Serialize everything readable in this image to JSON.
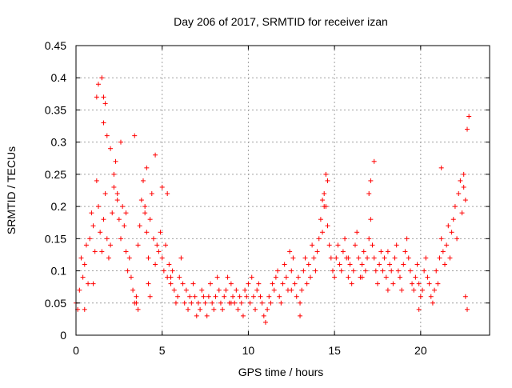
{
  "chart_data": {
    "type": "scatter",
    "title": "Day 206 of 2017, SRMTID for receiver izan",
    "xlabel": "GPS time / hours",
    "ylabel": "SRMTID / TECUs",
    "xlim": [
      0,
      24
    ],
    "ylim": [
      0,
      0.45
    ],
    "x_ticks": [
      0,
      5,
      10,
      15,
      20
    ],
    "x_tick_labels": [
      "0",
      "5",
      "10",
      "15",
      "20"
    ],
    "y_ticks": [
      0,
      0.05,
      0.1,
      0.15,
      0.2,
      0.25,
      0.3,
      0.35,
      0.4,
      0.45
    ],
    "y_tick_labels": [
      "0",
      "0.05",
      "0.1",
      "0.15",
      "0.2",
      "0.25",
      "0.3",
      "0.35",
      "0.4",
      "0.45"
    ],
    "grid": true,
    "marker": "+",
    "color": "#ff0000",
    "series": [
      {
        "name": "SRMTID",
        "x": [
          0.0,
          0.1,
          0.2,
          0.3,
          0.4,
          0.5,
          0.6,
          0.7,
          0.8,
          0.9,
          1.0,
          1.1,
          1.2,
          1.3,
          1.4,
          1.5,
          1.6,
          1.7,
          1.8,
          1.9,
          2.0,
          2.1,
          2.2,
          2.3,
          2.4,
          2.5,
          2.6,
          2.7,
          2.8,
          2.9,
          3.0,
          3.1,
          3.2,
          3.3,
          3.4,
          3.5,
          3.6,
          3.7,
          3.8,
          3.9,
          4.0,
          4.1,
          4.2,
          4.3,
          4.4,
          4.5,
          4.6,
          4.7,
          4.8,
          4.9,
          5.0,
          5.1,
          5.2,
          5.3,
          5.4,
          5.5,
          5.6,
          5.7,
          5.8,
          5.9,
          6.0,
          6.1,
          6.2,
          6.3,
          6.4,
          6.5,
          6.6,
          6.7,
          6.8,
          6.9,
          7.0,
          7.1,
          7.2,
          7.3,
          7.4,
          7.5,
          7.6,
          7.7,
          7.8,
          7.9,
          8.0,
          8.1,
          8.2,
          8.3,
          8.4,
          8.5,
          8.6,
          8.7,
          8.8,
          8.9,
          9.0,
          9.1,
          9.2,
          9.3,
          9.4,
          9.5,
          9.6,
          9.7,
          9.8,
          9.9,
          10.0,
          10.1,
          10.2,
          10.3,
          10.4,
          10.5,
          10.6,
          10.7,
          10.8,
          10.9,
          11.0,
          11.1,
          11.2,
          11.3,
          11.4,
          11.5,
          11.6,
          11.7,
          11.8,
          11.9,
          12.0,
          12.1,
          12.2,
          12.3,
          12.4,
          12.5,
          12.6,
          12.7,
          12.8,
          12.9,
          13.0,
          13.1,
          13.2,
          13.3,
          13.4,
          13.5,
          13.6,
          13.7,
          13.8,
          13.9,
          14.0,
          14.1,
          14.2,
          14.3,
          14.4,
          14.5,
          14.6,
          14.7,
          14.8,
          14.9,
          15.0,
          15.1,
          15.2,
          15.3,
          15.4,
          15.5,
          15.6,
          15.7,
          15.8,
          15.9,
          16.0,
          16.1,
          16.2,
          16.3,
          16.4,
          16.5,
          16.6,
          16.7,
          16.8,
          16.9,
          17.0,
          17.1,
          17.2,
          17.3,
          17.4,
          17.5,
          17.6,
          17.7,
          17.8,
          17.9,
          18.0,
          18.1,
          18.2,
          18.3,
          18.4,
          18.5,
          18.6,
          18.7,
          18.8,
          18.9,
          19.0,
          19.1,
          19.2,
          19.3,
          19.4,
          19.5,
          19.6,
          19.7,
          19.8,
          19.9,
          20.0,
          20.1,
          20.2,
          20.3,
          20.4,
          20.5,
          20.6,
          20.7,
          20.8,
          20.9,
          21.0,
          21.1,
          21.2,
          21.3,
          21.4,
          21.5,
          21.6,
          21.7,
          21.8,
          21.9,
          22.0,
          22.1,
          22.2,
          22.3,
          22.4,
          22.5,
          22.6,
          22.7,
          22.8,
          1.2,
          1.3,
          1.5,
          1.6,
          1.6,
          1.7,
          1.8,
          2.0,
          2.2,
          2.4,
          2.6,
          3.4,
          4.0,
          4.1,
          4.6,
          5.3,
          5.0,
          14.3,
          14.4,
          14.5,
          14.6,
          17.0,
          17.1,
          17.3,
          21.2,
          22.5,
          22.6,
          22.7,
          1.0,
          3.5,
          3.6,
          4.2,
          4.3,
          5.5,
          0.5,
          2.9,
          9.0,
          12.5,
          13.0,
          15.8,
          16.6,
          18.1,
          19.9
        ],
        "y": [
          0.05,
          0.04,
          0.07,
          0.12,
          0.09,
          0.11,
          0.14,
          0.08,
          0.15,
          0.19,
          0.17,
          0.13,
          0.24,
          0.2,
          0.16,
          0.13,
          0.18,
          0.22,
          0.15,
          0.12,
          0.14,
          0.19,
          0.23,
          0.27,
          0.21,
          0.18,
          0.15,
          0.2,
          0.17,
          0.13,
          0.1,
          0.12,
          0.09,
          0.07,
          0.05,
          0.06,
          0.14,
          0.17,
          0.21,
          0.24,
          0.19,
          0.16,
          0.12,
          0.18,
          0.22,
          0.15,
          0.11,
          0.14,
          0.13,
          0.16,
          0.12,
          0.1,
          0.14,
          0.09,
          0.11,
          0.08,
          0.1,
          0.07,
          0.05,
          0.06,
          0.09,
          0.12,
          0.08,
          0.05,
          0.07,
          0.04,
          0.06,
          0.05,
          0.08,
          0.06,
          0.03,
          0.05,
          0.04,
          0.07,
          0.06,
          0.05,
          0.03,
          0.06,
          0.08,
          0.05,
          0.04,
          0.06,
          0.09,
          0.07,
          0.05,
          0.04,
          0.06,
          0.07,
          0.09,
          0.05,
          0.08,
          0.06,
          0.05,
          0.07,
          0.04,
          0.06,
          0.05,
          0.03,
          0.07,
          0.06,
          0.08,
          0.05,
          0.09,
          0.06,
          0.04,
          0.07,
          0.08,
          0.06,
          0.05,
          0.03,
          0.02,
          0.04,
          0.06,
          0.05,
          0.08,
          0.07,
          0.09,
          0.1,
          0.06,
          0.05,
          0.08,
          0.11,
          0.09,
          0.07,
          0.13,
          0.1,
          0.12,
          0.08,
          0.06,
          0.09,
          0.05,
          0.07,
          0.1,
          0.12,
          0.08,
          0.11,
          0.09,
          0.14,
          0.12,
          0.1,
          0.13,
          0.15,
          0.18,
          0.16,
          0.22,
          0.2,
          0.17,
          0.14,
          0.12,
          0.1,
          0.09,
          0.12,
          0.14,
          0.11,
          0.1,
          0.13,
          0.15,
          0.12,
          0.09,
          0.11,
          0.08,
          0.1,
          0.14,
          0.16,
          0.12,
          0.09,
          0.11,
          0.13,
          0.1,
          0.12,
          0.15,
          0.18,
          0.14,
          0.12,
          0.1,
          0.08,
          0.11,
          0.13,
          0.1,
          0.12,
          0.09,
          0.07,
          0.11,
          0.1,
          0.08,
          0.12,
          0.14,
          0.1,
          0.09,
          0.07,
          0.11,
          0.13,
          0.15,
          0.12,
          0.1,
          0.08,
          0.07,
          0.09,
          0.11,
          0.08,
          0.06,
          0.07,
          0.1,
          0.12,
          0.09,
          0.08,
          0.06,
          0.05,
          0.07,
          0.1,
          0.08,
          0.12,
          0.15,
          0.13,
          0.11,
          0.14,
          0.17,
          0.12,
          0.16,
          0.18,
          0.2,
          0.15,
          0.22,
          0.24,
          0.19,
          0.23,
          0.21,
          0.32,
          0.34,
          0.37,
          0.39,
          0.4,
          0.37,
          0.33,
          0.36,
          0.31,
          0.29,
          0.25,
          0.22,
          0.3,
          0.31,
          0.2,
          0.26,
          0.28,
          0.22,
          0.23,
          0.21,
          0.2,
          0.25,
          0.24,
          0.22,
          0.24,
          0.27,
          0.26,
          0.25,
          0.06,
          0.04,
          0.08,
          0.05,
          0.04,
          0.08,
          0.06,
          0.09,
          0.04,
          0.19,
          0.05,
          0.07,
          0.03,
          0.12,
          0.09,
          0.13,
          0.04
        ]
      }
    ]
  }
}
